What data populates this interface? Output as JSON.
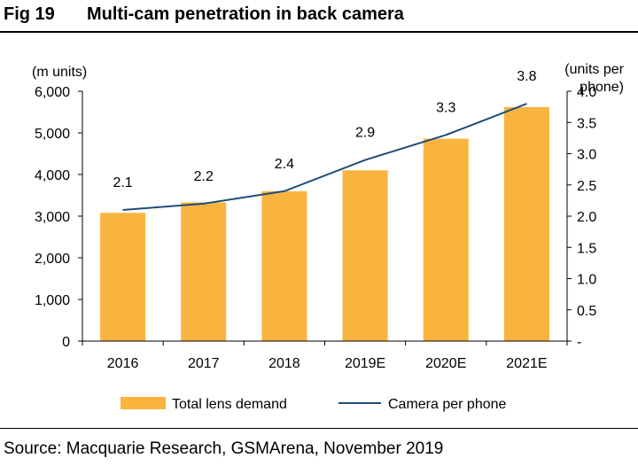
{
  "figure": {
    "number": "Fig 19",
    "title": "Multi-cam penetration in back camera",
    "source": "Source: Macquarie Research, GSMArena, November 2019"
  },
  "colors": {
    "bar": "#F9B43F",
    "line": "#1F4E79"
  },
  "chart_data": {
    "type": "bar",
    "categories": [
      "2016",
      "2017",
      "2018",
      "2019E",
      "2020E",
      "2021E"
    ],
    "series": [
      {
        "name": "Total lens demand",
        "type": "bar",
        "axis": "left",
        "values": [
          3080,
          3330,
          3600,
          4100,
          4860,
          5620
        ]
      },
      {
        "name": "Camera per phone",
        "type": "line",
        "axis": "right",
        "values": [
          2.1,
          2.2,
          2.4,
          2.9,
          3.3,
          3.8
        ],
        "labels": [
          "2.1",
          "2.2",
          "2.4",
          "2.9",
          "3.3",
          "3.8"
        ]
      }
    ],
    "ylabel": "(m units)",
    "ylim": [
      0,
      6000
    ],
    "yticks": [
      "0",
      "1,000",
      "2,000",
      "3,000",
      "4,000",
      "5,000",
      "6,000"
    ],
    "y2label": "(units per phone)",
    "y2lim": [
      0,
      4.0
    ],
    "y2ticks": [
      "-",
      "0.5",
      "1.0",
      "1.5",
      "2.0",
      "2.5",
      "3.0",
      "3.5",
      "4.0"
    ],
    "legend": [
      "Total lens demand",
      "Camera per phone"
    ],
    "legend_position": "bottom",
    "grid": false
  }
}
